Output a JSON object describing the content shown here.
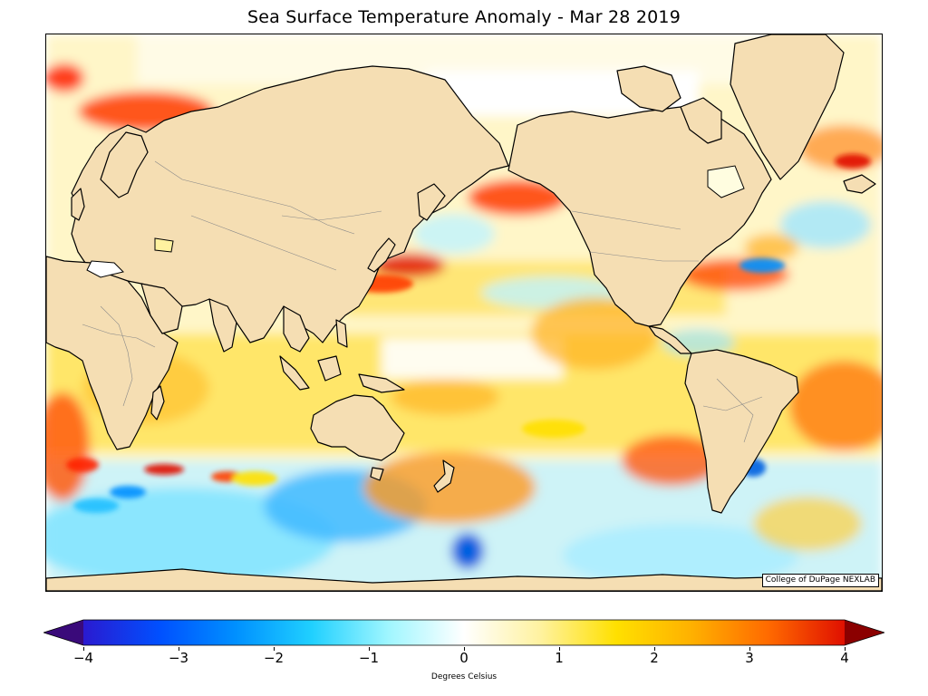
{
  "title": "Sea Surface Temperature Anomaly - Mar 28 2019",
  "credit": "College of DuPage NEXLAB",
  "colorbar": {
    "label": "Degrees Celsius",
    "min": -4,
    "max": 4,
    "ticks": [
      "−4",
      "−3",
      "−2",
      "−1",
      "0",
      "1",
      "2",
      "3",
      "4"
    ],
    "extend": "both",
    "colors": [
      "#3a0a7a",
      "#2a1ad0",
      "#0050ff",
      "#0090ff",
      "#20d0ff",
      "#9ff6ff",
      "#ffffff",
      "#fff2a0",
      "#ffe000",
      "#ffb000",
      "#ff6a00",
      "#e01000",
      "#8b0000"
    ]
  },
  "map": {
    "land_color": "#f5deb3",
    "ocean_ice_color": "#ffffff",
    "coastline_color": "#000000",
    "border_color": "#888888"
  }
}
